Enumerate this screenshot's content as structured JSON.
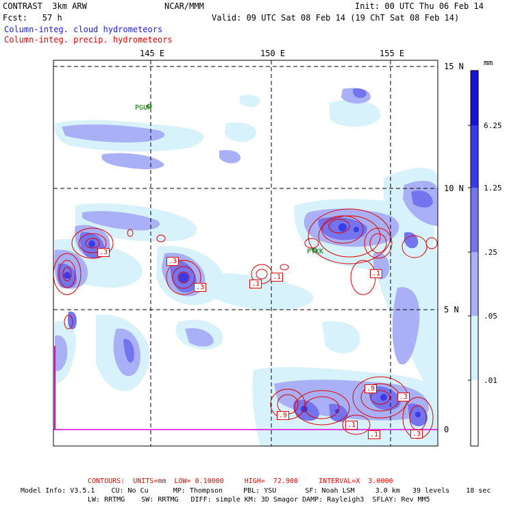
{
  "header": {
    "model": "CONTRAST  3km ARW",
    "org": "NCAR/MMM",
    "init": "Init: 00 UTC Thu 06 Feb 14",
    "fcst": "Fcst:   57 h",
    "valid": "Valid: 09 UTC Sat 08 Feb 14 (19 ChT Sat 08 Feb 14)",
    "field1": "Column-integ. cloud hydrometeors",
    "field2": "Column-integ. precip. hydrometeors"
  },
  "map": {
    "lon_labels": [
      "145 E",
      "150 E",
      "155 E"
    ],
    "lat_labels": [
      "15 N",
      "10 N",
      "5 N",
      "0"
    ],
    "stations": [
      "PGUM",
      "PTKK"
    ],
    "contour_labels": [
      ".3",
      ".3",
      ".3",
      ".1",
      ".1",
      ".1",
      ".3",
      ".9",
      ".3",
      ".9",
      ".1",
      ".1"
    ]
  },
  "colorbar": {
    "unit": "mm",
    "levels": [
      "6.25",
      "1.25",
      ".25",
      ".05",
      ".01"
    ],
    "colors": [
      "#1a14d2",
      "#3a3ae6",
      "#7474ee",
      "#aab0f5",
      "#d8f2fb",
      "#ffffff"
    ]
  },
  "footer": {
    "contours": "CONTOURS:  UNITS=mm  LOW= 0.10000     HIGH=  72.900     INTERVAL=X  3.0000",
    "model_info_1": "Model Info: V3.5.1    CU: No Cu      MP: Thompson     PBL: YSU       SF: Noah LSM     3.0 km   39 levels    18 sec",
    "model_info_2": "LW: RRTMG    SW: RRTMG   DIFF: simple KM: 3D Smagor DAMP: Rayleigh3  SFLAY: Rev MM5"
  }
}
